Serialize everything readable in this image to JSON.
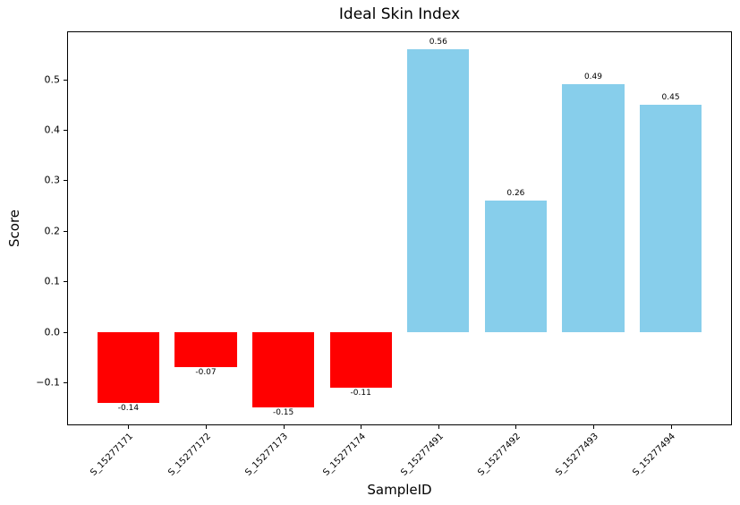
{
  "figure": {
    "background": "#ffffff"
  },
  "chart_data": {
    "type": "bar",
    "title": "Ideal Skin Index",
    "xlabel": "SampleID",
    "ylabel": "Score",
    "categories": [
      "S_15277171",
      "S_15277172",
      "S_15277173",
      "S_15277174",
      "S_15277491",
      "S_15277492",
      "S_15277493",
      "S_15277494"
    ],
    "values": [
      -0.14,
      -0.07,
      -0.15,
      -0.11,
      0.56,
      0.26,
      0.49,
      0.45
    ],
    "value_labels": [
      "-0.14",
      "-0.07",
      "-0.15",
      "-0.11",
      "0.56",
      "0.26",
      "0.49",
      "0.45"
    ],
    "colors": {
      "positive_bar": "#87CEEB",
      "negative_bar": "#FF0000",
      "spine": "#000000",
      "text": "#000000"
    },
    "y_ticks": [
      -0.1,
      0.0,
      0.1,
      0.2,
      0.3,
      0.4,
      0.5
    ],
    "y_tick_labels": [
      "−0.1",
      "0.0",
      "0.1",
      "0.2",
      "0.3",
      "0.4",
      "0.5"
    ],
    "ylim": [
      -0.185,
      0.595
    ],
    "bar_width_ratio": 0.8,
    "grid": false,
    "legend": "none"
  }
}
